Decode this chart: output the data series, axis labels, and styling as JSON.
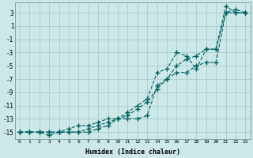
{
  "xlabel": "Humidex (Indice chaleur)",
  "xlim": [
    -0.5,
    23.5
  ],
  "ylim": [
    -16,
    4.5
  ],
  "xticks": [
    0,
    1,
    2,
    3,
    4,
    5,
    6,
    7,
    8,
    9,
    10,
    11,
    12,
    13,
    14,
    15,
    16,
    17,
    18,
    19,
    20,
    21,
    22,
    23
  ],
  "yticks": [
    3,
    1,
    -1,
    -3,
    -5,
    -7,
    -9,
    -11,
    -13,
    -15
  ],
  "bg_color": "#cce8e8",
  "grid_color": "#aacccc",
  "line_color": "#006060",
  "line1_x": [
    0,
    1,
    2,
    3,
    4,
    5,
    6,
    7,
    8,
    9,
    10,
    11,
    12,
    13,
    14,
    15,
    16,
    17,
    18,
    19,
    20,
    21,
    22,
    23
  ],
  "line1_y": [
    -15,
    -15,
    -15,
    -15,
    -15,
    -15,
    -15,
    -15,
    -14.5,
    -14,
    -13,
    -12.5,
    -11.5,
    -10.5,
    -8.5,
    -7,
    -5,
    -4,
    -3.5,
    -2.5,
    -2.5,
    4,
    3,
    3
  ],
  "line2_x": [
    0,
    1,
    2,
    3,
    4,
    5,
    6,
    7,
    8,
    9,
    10,
    11,
    12,
    13,
    14,
    15,
    16,
    17,
    18,
    19,
    20,
    21,
    22,
    23
  ],
  "line2_y": [
    -15,
    -15,
    -15,
    -15.5,
    -15,
    -15,
    -15,
    -14.5,
    -14,
    -13.5,
    -13,
    -12,
    -11,
    -10,
    -6,
    -5.5,
    -3,
    -3.5,
    -5.5,
    -2.5,
    -2.5,
    3,
    3,
    3
  ],
  "line3_x": [
    0,
    1,
    2,
    3,
    4,
    5,
    6,
    7,
    8,
    9,
    10,
    11,
    12,
    13,
    14,
    15,
    16,
    17,
    18,
    19,
    20,
    21,
    22,
    23
  ],
  "line3_y": [
    -15,
    -15,
    -15,
    -15,
    -15,
    -14.5,
    -14,
    -14,
    -13.5,
    -13,
    -13,
    -13,
    -13,
    -12.5,
    -8,
    -7,
    -6,
    -6,
    -5,
    -4.5,
    -4.5,
    3,
    3.5,
    3
  ]
}
